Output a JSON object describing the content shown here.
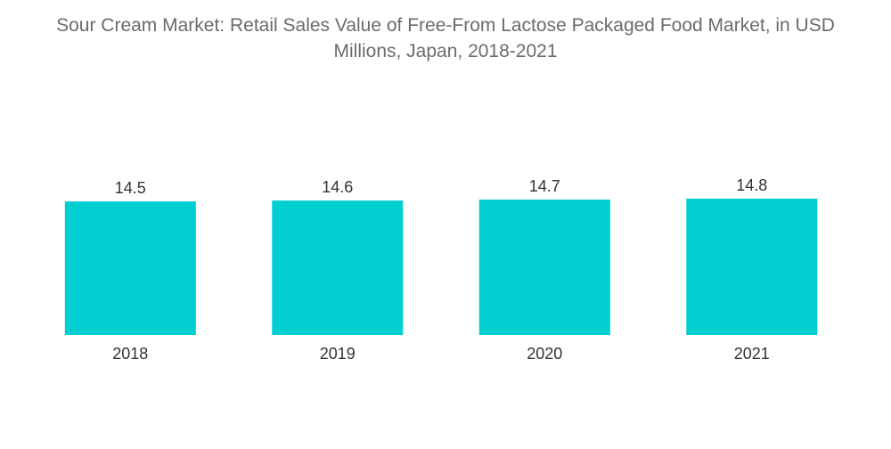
{
  "chart_data": {
    "type": "bar",
    "title_line1": "Sour Cream Market: Retail Sales Value of Free-From Lactose Packaged Food Market, in USD",
    "title_line2": "Millions, Japan, 2018-2021",
    "categories": [
      "2018",
      "2019",
      "2020",
      "2021"
    ],
    "values": [
      14.5,
      14.6,
      14.7,
      14.8
    ],
    "data_labels": [
      "14.5",
      "14.6",
      "14.7",
      "14.8"
    ],
    "xlabel": "",
    "ylabel": "",
    "grid": false,
    "legend": "none",
    "bar_color": "#00CED1"
  }
}
